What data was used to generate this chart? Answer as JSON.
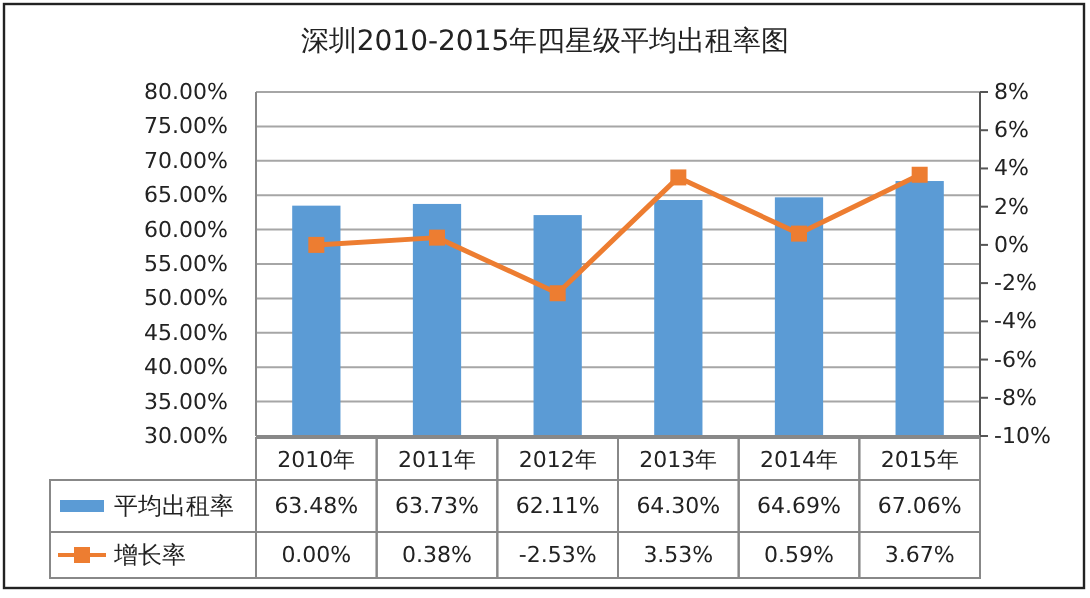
{
  "chart_data": {
    "type": "bar",
    "title": "深圳2010-2015年四星级平均出租率图",
    "categories": [
      "2010年",
      "2011年",
      "2012年",
      "2013年",
      "2014年",
      "2015年"
    ],
    "series": [
      {
        "name": "平均出租率",
        "color": "#5b9bd5",
        "values": [
          63.48,
          63.73,
          62.11,
          64.3,
          64.69,
          67.06
        ],
        "value_labels": [
          "63.48%",
          "63.73%",
          "62.11%",
          "64.30%",
          "64.69%",
          "67.06%"
        ]
      },
      {
        "name": "增长率",
        "type": "line",
        "axis": "y2",
        "color": "#ed7d31",
        "marker": "square",
        "values": [
          0.0,
          0.38,
          -2.53,
          3.53,
          0.59,
          3.67
        ],
        "value_labels": [
          "0.00%",
          "0.38%",
          "-2.53%",
          "3.53%",
          "0.59%",
          "3.67%"
        ]
      }
    ],
    "ylim": [
      30,
      80
    ],
    "yticks": [
      {
        "value": 30,
        "label": "30.00%"
      },
      {
        "value": 35,
        "label": "35.00%"
      },
      {
        "value": 40,
        "label": "40.00%"
      },
      {
        "value": 45,
        "label": "45.00%"
      },
      {
        "value": 50,
        "label": "50.00%"
      },
      {
        "value": 55,
        "label": "55.00%"
      },
      {
        "value": 60,
        "label": "60.00%"
      },
      {
        "value": 65,
        "label": "65.00%"
      },
      {
        "value": 70,
        "label": "70.00%"
      },
      {
        "value": 75,
        "label": "75.00%"
      },
      {
        "value": 80,
        "label": "80.00%"
      }
    ],
    "y2lim": [
      -10,
      8
    ],
    "y2ticks": [
      {
        "value": -10,
        "label": "-10%"
      },
      {
        "value": -8,
        "label": "-8%"
      },
      {
        "value": -6,
        "label": "-6%"
      },
      {
        "value": -4,
        "label": "-4%"
      },
      {
        "value": -2,
        "label": "-2%"
      },
      {
        "value": 0,
        "label": "0%"
      },
      {
        "value": 2,
        "label": "2%"
      },
      {
        "value": 4,
        "label": "4%"
      },
      {
        "value": 6,
        "label": "6%"
      },
      {
        "value": 8,
        "label": "8%"
      }
    ],
    "grid": "y",
    "legend": "bottom"
  }
}
